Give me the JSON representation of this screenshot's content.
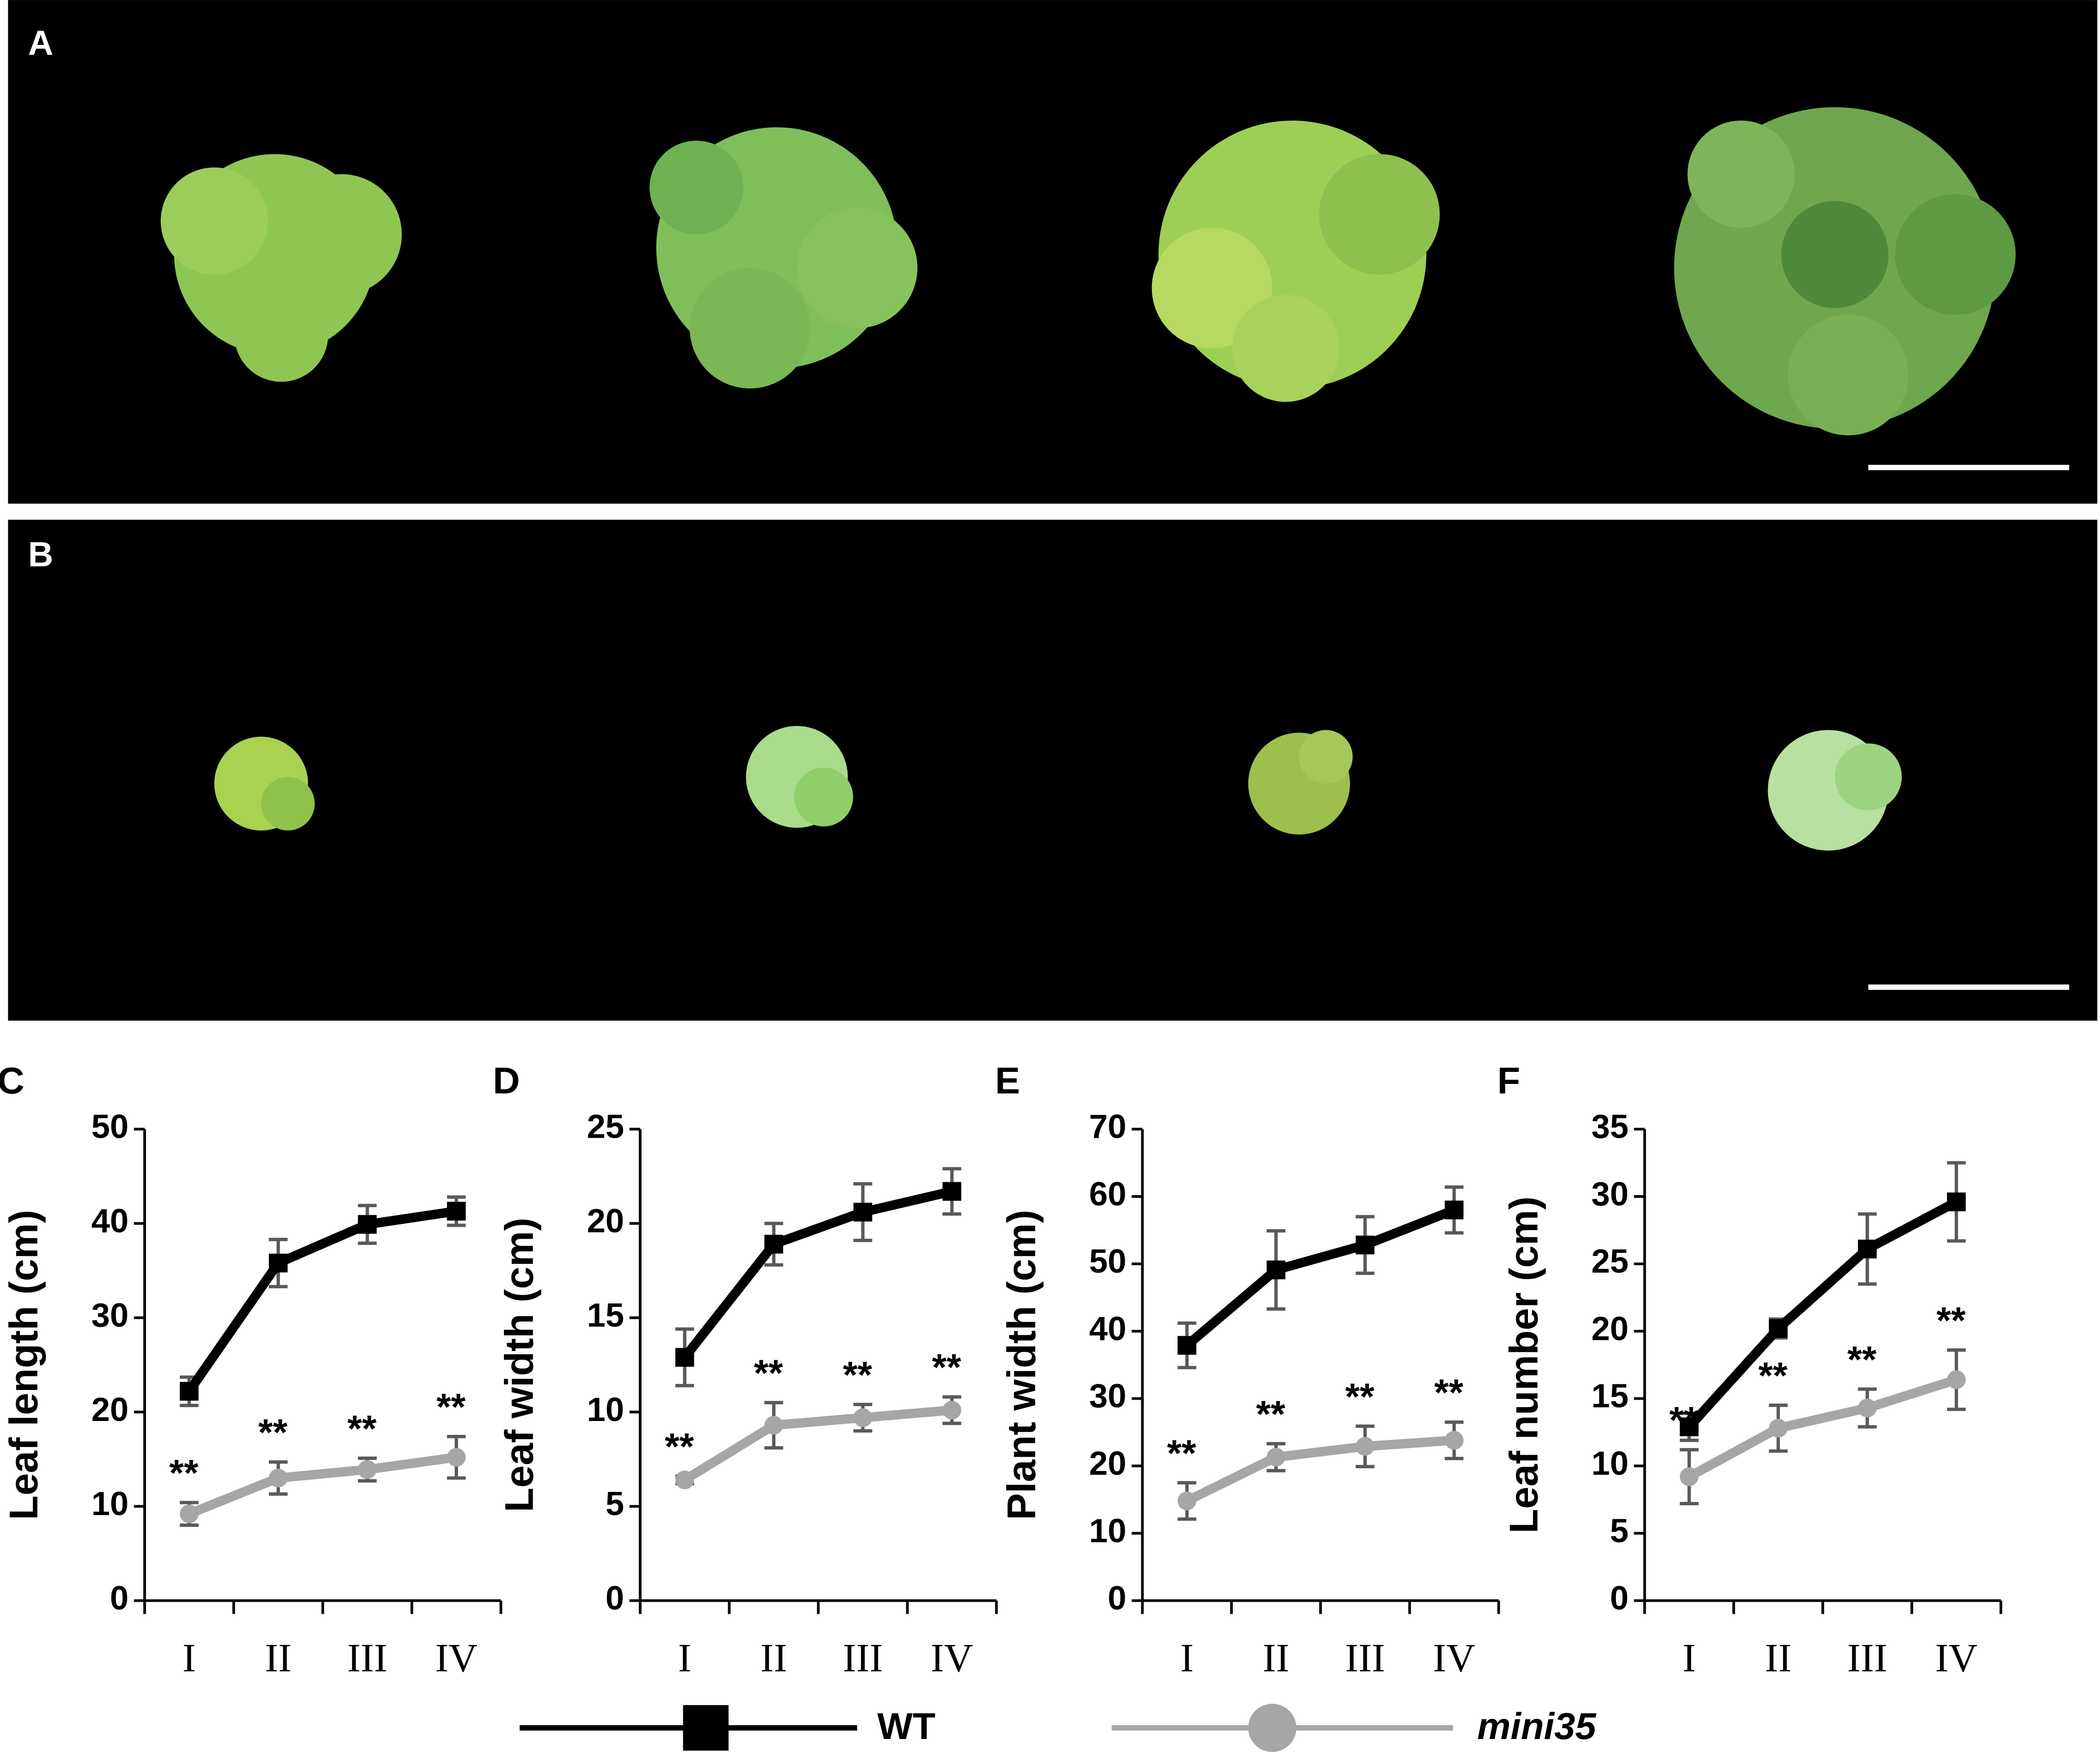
{
  "panels": [
    {
      "label": "A"
    },
    {
      "label": "B"
    }
  ],
  "chart_data": [
    {
      "type": "line",
      "panel_label": "C",
      "y_label": "Leaf length (cm)",
      "categories": [
        "I",
        "II",
        "III",
        "IV"
      ],
      "ylim": [
        0,
        50
      ],
      "yticks": [
        0,
        10,
        20,
        30,
        40,
        50
      ],
      "grid": false,
      "series": [
        {
          "name": "WT",
          "color": "#000000",
          "marker": "square",
          "values": [
            22.2,
            35.8,
            39.9,
            41.3
          ],
          "errors": [
            1.5,
            2.5,
            2.0,
            1.5
          ]
        },
        {
          "name": "mini35",
          "color": "#a6a6a6",
          "marker": "circle",
          "values": [
            9.2,
            13.0,
            13.9,
            15.2
          ],
          "errors": [
            1.2,
            1.7,
            1.2,
            2.2
          ]
        }
      ],
      "significance": [
        "**",
        "**",
        "**",
        "**"
      ]
    },
    {
      "type": "line",
      "panel_label": "D",
      "y_label": "Leaf width (cm)",
      "categories": [
        "I",
        "II",
        "III",
        "IV"
      ],
      "ylim": [
        0,
        25
      ],
      "yticks": [
        0,
        5,
        10,
        15,
        20,
        25
      ],
      "grid": false,
      "series": [
        {
          "name": "WT",
          "color": "#000000",
          "marker": "square",
          "values": [
            12.9,
            18.9,
            20.6,
            21.7
          ],
          "errors": [
            1.5,
            1.1,
            1.5,
            1.2
          ]
        },
        {
          "name": "mini35",
          "color": "#a6a6a6",
          "marker": "circle",
          "values": [
            6.4,
            9.3,
            9.7,
            10.1
          ],
          "errors": [
            0.2,
            1.2,
            0.7,
            0.7
          ]
        }
      ],
      "significance": [
        "**",
        "**",
        "**",
        "**"
      ]
    },
    {
      "type": "line",
      "panel_label": "E",
      "y_label": "Plant width (cm)",
      "categories": [
        "I",
        "II",
        "III",
        "IV"
      ],
      "ylim": [
        0,
        70
      ],
      "yticks": [
        0,
        10,
        20,
        30,
        40,
        50,
        60,
        70
      ],
      "grid": false,
      "series": [
        {
          "name": "WT",
          "color": "#000000",
          "marker": "square",
          "values": [
            37.9,
            49.1,
            52.8,
            58.0
          ],
          "errors": [
            3.3,
            5.8,
            4.2,
            3.4
          ]
        },
        {
          "name": "mini35",
          "color": "#a6a6a6",
          "marker": "circle",
          "values": [
            14.8,
            21.3,
            22.9,
            23.8
          ],
          "errors": [
            2.7,
            2.0,
            3.0,
            2.7
          ]
        }
      ],
      "significance": [
        "**",
        "**",
        "**",
        "**"
      ]
    },
    {
      "type": "line",
      "panel_label": "F",
      "y_label": "Leaf number (cm)",
      "categories": [
        "I",
        "II",
        "III",
        "IV"
      ],
      "ylim": [
        0,
        35
      ],
      "yticks": [
        0,
        5,
        10,
        15,
        20,
        25,
        30,
        35
      ],
      "grid": false,
      "series": [
        {
          "name": "WT",
          "color": "#000000",
          "marker": "square",
          "values": [
            12.9,
            20.2,
            26.1,
            29.6
          ],
          "errors": [
            1.0,
            0.7,
            2.6,
            2.9
          ]
        },
        {
          "name": "mini35",
          "color": "#a6a6a6",
          "marker": "circle",
          "values": [
            9.2,
            12.8,
            14.3,
            16.4
          ],
          "errors": [
            2.0,
            1.7,
            1.4,
            2.2
          ]
        }
      ],
      "significance": [
        "**",
        "**",
        "**",
        "**"
      ]
    }
  ]
}
